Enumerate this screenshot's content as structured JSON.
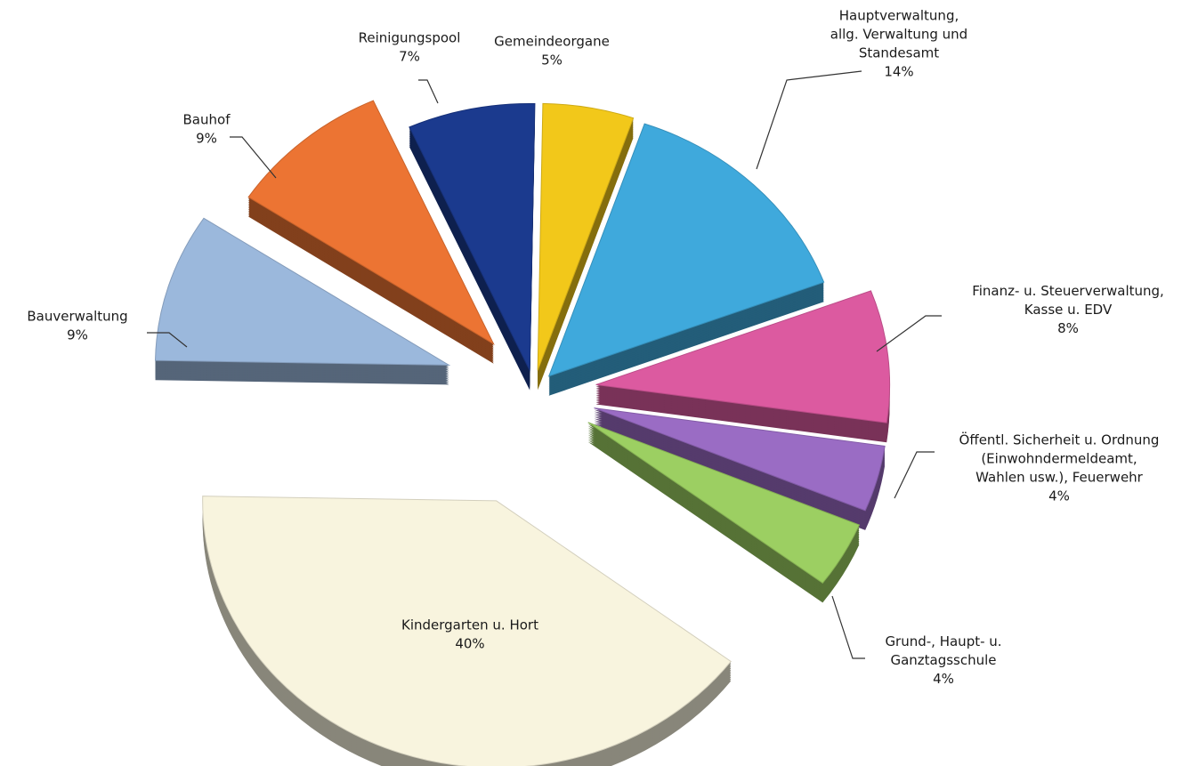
{
  "chart_data": {
    "type": "pie",
    "style": "3d-exploded",
    "legend": "none",
    "slices": [
      {
        "name": "Gemeindeorgane",
        "lines": [
          "Gemeindeorgane"
        ],
        "percent_label": "5%",
        "value": 5,
        "color": "#f2c81a"
      },
      {
        "name": "Hauptverwaltung, allg. Verwaltung und Standesamt",
        "lines": [
          "Hauptverwaltung,",
          "allg. Verwaltung und",
          "Standesamt"
        ],
        "percent_label": "14%",
        "value": 14,
        "color": "#3fa9dc"
      },
      {
        "name": "Finanz- u. Steuerverwaltung, Kasse u. EDV",
        "lines": [
          "Finanz- u. Steuerverwaltung,",
          "Kasse u. EDV"
        ],
        "percent_label": "8%",
        "value": 8,
        "color": "#dc5aa0"
      },
      {
        "name": "Öffentl. Sicherheit u. Ordnung (Einwohndermeldeamt, Wahlen usw.), Feuerwehr",
        "lines": [
          "Öffentl. Sicherheit u. Ordnung",
          "(Einwohndermeldeamt,",
          "Wahlen usw.), Feuerwehr"
        ],
        "percent_label": "4%",
        "value": 4,
        "color": "#9a6cc4"
      },
      {
        "name": "Grund-, Haupt- u. Ganztagsschule",
        "lines": [
          "Grund-, Haupt- u.",
          "Ganztagsschule"
        ],
        "percent_label": "4%",
        "value": 4,
        "color": "#9ccf62"
      },
      {
        "name": "Kindergarten u. Hort",
        "lines": [
          "Kindergarten u.  Hort"
        ],
        "percent_label": "40%",
        "value": 40,
        "color": "#f8f4de"
      },
      {
        "name": "Bauverwaltung",
        "lines": [
          "Bauverwaltung"
        ],
        "percent_label": "9%",
        "value": 9,
        "color": "#9bb8dc"
      },
      {
        "name": "Bauhof",
        "lines": [
          "Bauhof"
        ],
        "percent_label": "9%",
        "value": 9,
        "color": "#ec7433"
      },
      {
        "name": "Reinigungspool",
        "lines": [
          "Reinigungspool"
        ],
        "percent_label": "7%",
        "value": 7,
        "color": "#1b3a8e"
      }
    ]
  }
}
